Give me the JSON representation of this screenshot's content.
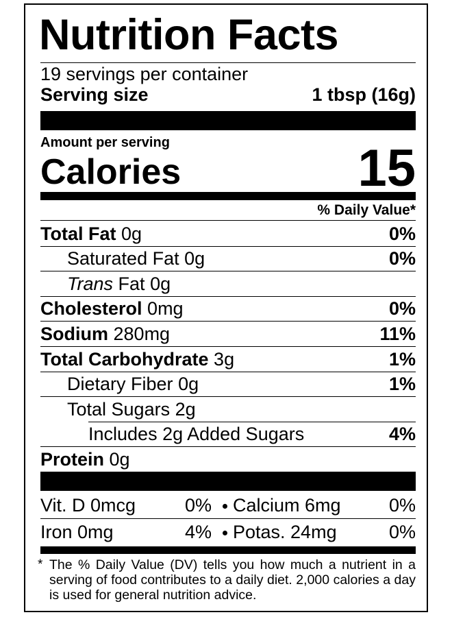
{
  "title": "Nutrition Facts",
  "servings": "19 servings per container",
  "serving_size": {
    "label": "Serving size",
    "value": "1 tbsp (16g)"
  },
  "amount_per_serving": "Amount per serving",
  "calories": {
    "label": "Calories",
    "value": "15"
  },
  "dv_header": "% Daily Value*",
  "nutrients": [
    {
      "name": "Total Fat",
      "amount": "0g",
      "dv": "0%",
      "sub": [
        {
          "name": "Saturated Fat",
          "amount": "0g",
          "dv": "0%"
        },
        {
          "prefix": "Trans",
          "name": "Fat",
          "amount": "0g"
        }
      ]
    },
    {
      "name": "Cholesterol",
      "amount": "0mg",
      "dv": "0%"
    },
    {
      "name": "Sodium",
      "amount": "280mg",
      "dv": "11%"
    },
    {
      "name": "Total Carbohydrate",
      "amount": "3g",
      "dv": "1%",
      "sub": [
        {
          "name": "Dietary Fiber",
          "amount": "0g",
          "dv": "1%"
        },
        {
          "name": "Total Sugars",
          "amount": "2g",
          "sub": [
            {
              "name": "Includes 2g Added Sugars",
              "dv": "4%"
            }
          ]
        }
      ]
    },
    {
      "name": "Protein",
      "amount": "0g"
    }
  ],
  "minerals": [
    [
      {
        "name": "Vit. D 0mcg",
        "dv": "0%"
      },
      {
        "name": "Calcium 6mg",
        "dv": "0%"
      }
    ],
    [
      {
        "name": "Iron 0mg",
        "dv": "4%"
      },
      {
        "name": "Potas. 24mg",
        "dv": "0%"
      }
    ]
  ],
  "footnote": {
    "mark": "*",
    "text": "The % Daily Value (DV) tells you how much a nutrient in a serving of food contributes to a daily diet. 2,000 calories a day is used for general nutrition advice."
  }
}
